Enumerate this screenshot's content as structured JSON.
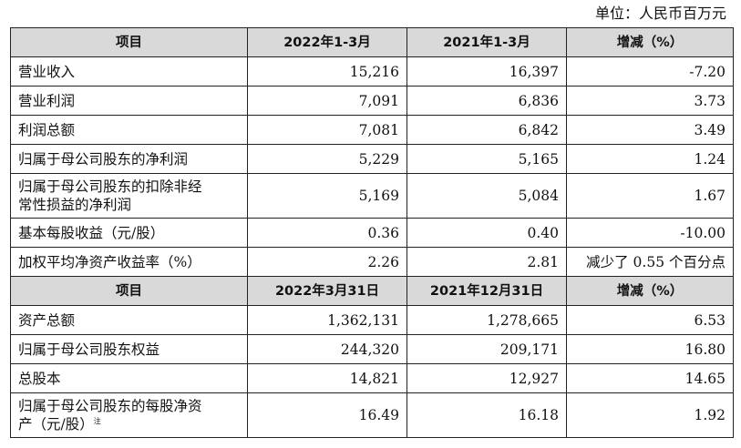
{
  "unit_label": "单位：人民币百万元",
  "section1": {
    "headers": [
      "项目",
      "2022年1-3月",
      "2021年1-3月",
      "增减（%）"
    ],
    "rows": [
      {
        "item": "营业收入",
        "current": "15,216",
        "previous": "16,397",
        "change": "-7.20"
      },
      {
        "item": "营业利润",
        "current": "7,091",
        "previous": "6,836",
        "change": "3.73"
      },
      {
        "item": "利润总额",
        "current": "7,081",
        "previous": "6,842",
        "change": "3.49"
      },
      {
        "item": "归属于母公司股东的净利润",
        "current": "5,229",
        "previous": "5,165",
        "change": "1.24"
      },
      {
        "item_line1": "归属于母公司股东的扣除非经",
        "item_line2": "常性损益的净利润",
        "current": "5,169",
        "previous": "5,084",
        "change": "1.67"
      },
      {
        "item": "基本每股收益（元/股）",
        "current": "0.36",
        "previous": "0.40",
        "change": "-10.00"
      },
      {
        "item": "加权平均净资产收益率（%）",
        "current": "2.26",
        "previous": "2.81",
        "change": "减少了 0.55 个百分点"
      }
    ]
  },
  "section2": {
    "headers": [
      "项目",
      "2022年3月31日",
      "2021年12月31日",
      "增减（%）"
    ],
    "rows": [
      {
        "item": "资产总额",
        "current": "1,362,131",
        "previous": "1,278,665",
        "change": "6.53"
      },
      {
        "item": "归属于母公司股东权益",
        "current": "244,320",
        "previous": "209,171",
        "change": "16.80"
      },
      {
        "item": "总股本",
        "current": "14,821",
        "previous": "12,927",
        "change": "14.65"
      },
      {
        "item_line1": "归属于母公司股东的每股净资",
        "item_line2": "产（元/股）",
        "note": "注",
        "current": "16.49",
        "previous": "16.18",
        "change": "1.92"
      }
    ]
  }
}
